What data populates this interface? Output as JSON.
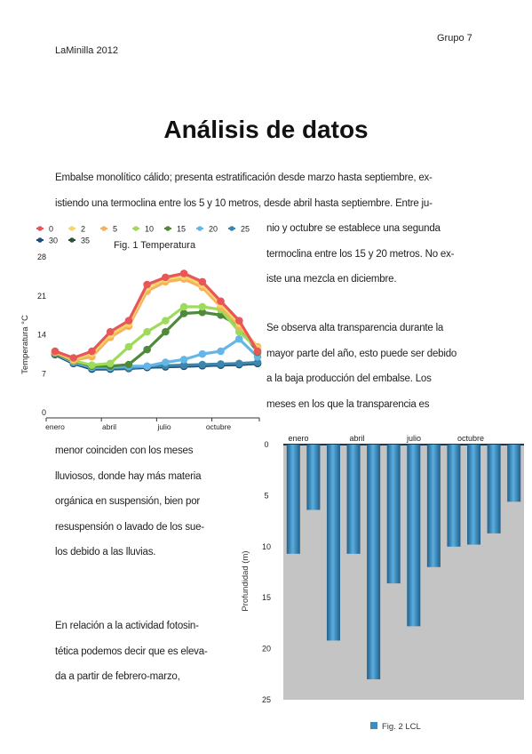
{
  "header": {
    "left": "LaMinilla 2012",
    "right": "Grupo 7"
  },
  "title": "Análisis de datos",
  "para1_lines": [
    "Embalse monolítico cálido; presenta estratificación desde marzo hasta septiembre, ex-",
    "istiendo una termoclina entre los 5 y 10 metros, desde abril hasta septiembre. Entre ju-"
  ],
  "para1_right_lines": [
    "nio y octubre se establece una segunda",
    "termoclina entre los 15 y 20 metros.  No ex-",
    "iste una mezcla en diciembre."
  ],
  "para2_lines": [
    "Se observa alta transparencia durante la",
    "mayor parte del año, esto puede ser debido",
    "a la baja producción del embalse. Los",
    "meses en los que la transparencia es"
  ],
  "para3_lines": [
    "menor coinciden con los meses",
    "lluviosos, donde hay más materia",
    "orgánica en suspensión, bien por",
    "resuspensión o lavado de los sue-",
    "los debido a las lluvias."
  ],
  "para4_lines": [
    "En relación a la actividad fotosin-",
    "tética podemos decir que es eleva-",
    "da a partir de febrero-marzo,"
  ],
  "chart_data": [
    {
      "type": "line",
      "title": "Fig. 1 Temperatura",
      "ylabel": "Temperatura °C",
      "xlabel": "",
      "x": [
        "ene",
        "feb",
        "mar",
        "abr",
        "may",
        "jun",
        "jul",
        "ago",
        "sep",
        "oct",
        "nov",
        "dic"
      ],
      "x_tick_labels": [
        "enero",
        "abril",
        "julio",
        "octubre"
      ],
      "y_ticks": [
        0,
        7,
        14,
        21,
        28
      ],
      "ylim": [
        0,
        28
      ],
      "legend": "top",
      "series": [
        {
          "name": "0",
          "color": "#e8565a",
          "values": [
            12,
            10.8,
            12,
            15.5,
            17.5,
            24,
            25.3,
            26,
            24.5,
            21,
            17.5,
            12
          ]
        },
        {
          "name": "2",
          "color": "#f5d66b",
          "values": [
            12,
            10.6,
            11.6,
            15,
            17,
            23.5,
            25,
            25.5,
            24,
            20.5,
            17,
            12.5
          ]
        },
        {
          "name": "5",
          "color": "#f5b25a",
          "values": [
            11.8,
            10.4,
            11,
            14.5,
            16.5,
            22.8,
            24.5,
            25,
            23.5,
            20,
            16.5,
            12.8
          ]
        },
        {
          "name": "10",
          "color": "#9ddc5a",
          "values": [
            11.8,
            10.3,
            9.5,
            9.8,
            12.8,
            15.5,
            17.5,
            20,
            20,
            19.5,
            15.5,
            12.5
          ]
        },
        {
          "name": "15",
          "color": "#4f8a3a",
          "values": [
            11.6,
            10.2,
            9.3,
            9.3,
            9.6,
            12.3,
            15.5,
            18.8,
            19,
            18.5,
            16.5,
            11.8
          ]
        },
        {
          "name": "20",
          "color": "#64b6e6",
          "values": [
            11.6,
            10,
            9.1,
            9.1,
            9.3,
            9.3,
            10,
            10.5,
            11.5,
            12,
            14.2,
            11
          ]
        },
        {
          "name": "25",
          "color": "#3a86ad",
          "values": [
            11.5,
            10,
            9,
            9,
            9,
            9.3,
            9.4,
            9.5,
            9.6,
            9.7,
            9.8,
            10
          ]
        },
        {
          "name": "30",
          "color": "#1f4d78",
          "values": [
            11.4,
            9.8,
            8.8,
            8.8,
            8.9,
            9.1,
            9.2,
            9.3,
            9.4,
            9.5,
            9.6,
            9.8
          ]
        },
        {
          "name": "35",
          "color": "#2e4f3a",
          "values": [
            11.4,
            9.8,
            8.8,
            8.8,
            8.9,
            9.1,
            9.2,
            9.3,
            9.4,
            9.5,
            9.6,
            9.8
          ]
        }
      ]
    },
    {
      "type": "bar",
      "title": "",
      "legend_label": "Fig. 2 LCL",
      "ylabel": "Profundidad (m)",
      "categories": [
        "ene",
        "feb",
        "mar",
        "abr",
        "may",
        "jun",
        "jul",
        "ago",
        "sep",
        "oct",
        "nov",
        "dic"
      ],
      "x_tick_labels": [
        "enero",
        "abril",
        "julio",
        "octubre"
      ],
      "values": [
        10.7,
        6.4,
        19.2,
        10.7,
        23,
        13.6,
        17.8,
        12,
        10,
        9.8,
        8.7,
        5.6
      ],
      "y_ticks": [
        0,
        5,
        10,
        15,
        20,
        25
      ],
      "ylim": [
        0,
        25
      ],
      "inverted_y": true,
      "color": "#3c8dbc"
    }
  ]
}
